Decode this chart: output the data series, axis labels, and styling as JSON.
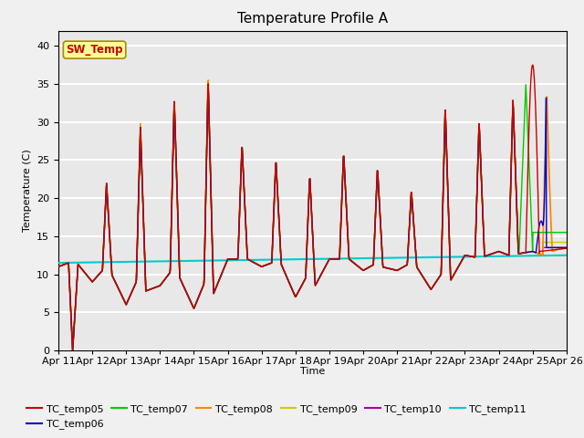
{
  "title": "Temperature Profile A",
  "xlabel": "Time",
  "ylabel": "Temperature (C)",
  "ylim": [
    0,
    42
  ],
  "yticks": [
    0,
    5,
    10,
    15,
    20,
    25,
    30,
    35,
    40
  ],
  "date_labels": [
    "Apr 11",
    "Apr 12",
    "Apr 13",
    "Apr 14",
    "Apr 15",
    "Apr 16",
    "Apr 17",
    "Apr 18",
    "Apr 19",
    "Apr 20",
    "Apr 21",
    "Apr 22",
    "Apr 23",
    "Apr 24",
    "Apr 25",
    "Apr 26"
  ],
  "series_colors": {
    "TC_temp05": "#cc0000",
    "TC_temp06": "#0000cc",
    "TC_temp07": "#00cc00",
    "TC_temp08": "#ff8800",
    "TC_temp09": "#cccc00",
    "TC_temp10": "#aa00aa",
    "TC_temp11": "#00cccc"
  },
  "sw_temp_label": "SW_Temp",
  "sw_temp_color": "#cc0000",
  "sw_temp_bg": "#ffff99",
  "background_color": "#e8e8e8",
  "grid_color": "#ffffff",
  "title_fontsize": 11,
  "axis_fontsize": 8,
  "legend_fontsize": 8,
  "day_peaks": [
    0,
    22,
    29.5,
    33,
    35.5,
    27,
    25,
    23,
    26,
    24,
    21,
    32,
    30,
    33,
    37.5,
    13
  ],
  "day_mins": [
    11,
    9,
    6,
    8.5,
    5.5,
    12,
    11,
    7,
    12,
    10.5,
    10.5,
    8,
    12.5,
    13,
    13,
    13
  ]
}
